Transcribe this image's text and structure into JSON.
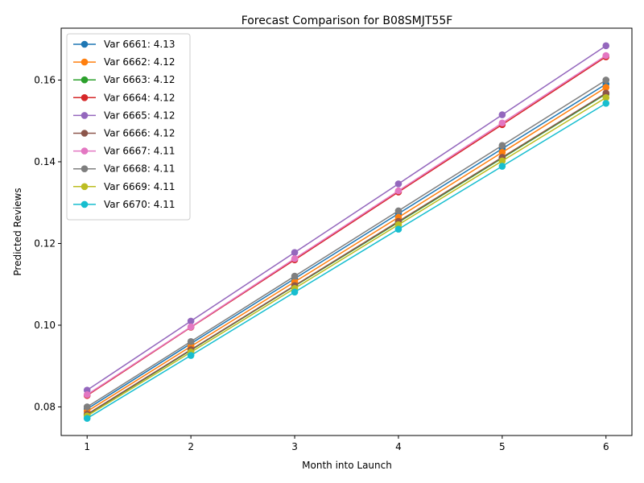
{
  "chart_data": {
    "type": "line",
    "title": "Forecast Comparison for B08SMJT55F",
    "xlabel": "Month into Launch",
    "ylabel": "Predicted Reviews",
    "xlim": [
      0.75,
      6.25
    ],
    "ylim": [
      0.073,
      0.1727
    ],
    "x_ticks": [
      1,
      2,
      3,
      4,
      5,
      6
    ],
    "y_ticks": [
      0.08,
      0.1,
      0.12,
      0.14,
      0.16
    ],
    "y_tick_labels": [
      "0.08",
      "0.10",
      "0.12",
      "0.14",
      "0.16"
    ],
    "grid": false,
    "legend_position": "upper-left",
    "x": [
      1,
      2,
      3,
      4,
      5,
      6
    ],
    "series": [
      {
        "name": "Var 6661: 4.13",
        "color": "#1f77b4",
        "values": [
          0.0795,
          0.0955,
          0.1114,
          0.1273,
          0.1432,
          0.159
        ]
      },
      {
        "name": "Var 6662: 4.12",
        "color": "#ff7f0e",
        "values": [
          0.0789,
          0.0948,
          0.1106,
          0.1264,
          0.1423,
          0.1582
        ]
      },
      {
        "name": "Var 6663: 4.12",
        "color": "#2ca02c",
        "values": [
          0.0781,
          0.0939,
          0.1096,
          0.1252,
          0.1409,
          0.1566
        ]
      },
      {
        "name": "Var 6664: 4.12",
        "color": "#d62728",
        "values": [
          0.0828,
          0.0995,
          0.116,
          0.1326,
          0.1491,
          0.1657
        ]
      },
      {
        "name": "Var 6665: 4.12",
        "color": "#9467bd",
        "values": [
          0.0841,
          0.101,
          0.1178,
          0.1346,
          0.1515,
          0.1684
        ]
      },
      {
        "name": "Var 6666: 4.12",
        "color": "#8c564b",
        "values": [
          0.0782,
          0.094,
          0.1097,
          0.1254,
          0.1411,
          0.1568
        ]
      },
      {
        "name": "Var 6667: 4.11",
        "color": "#e377c2",
        "values": [
          0.083,
          0.0996,
          0.1163,
          0.1329,
          0.1495,
          0.166
        ]
      },
      {
        "name": "Var 6668: 4.11",
        "color": "#7f7f7f",
        "values": [
          0.08,
          0.096,
          0.112,
          0.128,
          0.144,
          0.16
        ]
      },
      {
        "name": "Var 6669: 4.11",
        "color": "#bcbd22",
        "values": [
          0.0778,
          0.0934,
          0.109,
          0.1246,
          0.1402,
          0.1557
        ]
      },
      {
        "name": "Var 6670: 4.11",
        "color": "#17becf",
        "values": [
          0.0772,
          0.0926,
          0.1081,
          0.1235,
          0.1389,
          0.1543
        ]
      }
    ]
  }
}
